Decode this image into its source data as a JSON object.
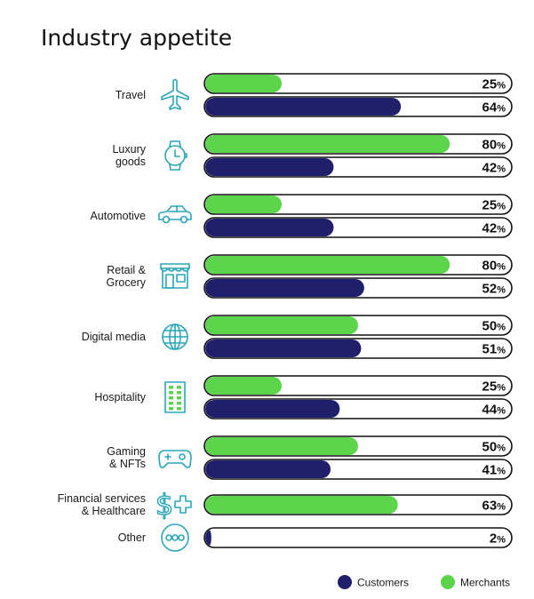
{
  "chart_data": {
    "type": "bar",
    "orientation": "horizontal",
    "title": "Industry appetite",
    "xlim": [
      0,
      100
    ],
    "unit": "%",
    "categories": [
      {
        "label": [
          "Travel"
        ],
        "icon": "airplane-icon",
        "customers": 64,
        "merchants": 25
      },
      {
        "label": [
          "Luxury",
          "goods"
        ],
        "icon": "watch-icon",
        "customers": 42,
        "merchants": 80
      },
      {
        "label": [
          "Automotive"
        ],
        "icon": "car-icon",
        "customers": 42,
        "merchants": 25
      },
      {
        "label": [
          "Retail &",
          "Grocery"
        ],
        "icon": "storefront-icon",
        "customers": 52,
        "merchants": 80
      },
      {
        "label": [
          "Digital media"
        ],
        "icon": "globe-icon",
        "customers": 51,
        "merchants": 50
      },
      {
        "label": [
          "Hospitality"
        ],
        "icon": "hotel-building-icon",
        "customers": 44,
        "merchants": 25
      },
      {
        "label": [
          "Gaming",
          "& NFTs"
        ],
        "icon": "game-controller-icon",
        "customers": 41,
        "merchants": 50
      },
      {
        "label": [
          "Financial services",
          "& Healthcare"
        ],
        "icon": "dollar-plus-icon",
        "customers": null,
        "merchants": 63
      },
      {
        "label": [
          "Other"
        ],
        "icon": "ellipsis-circle-icon",
        "customers": 2,
        "merchants": null
      }
    ],
    "series": [
      {
        "key": "customers",
        "name": "Customers",
        "color": "#1f1f6b"
      },
      {
        "key": "merchants",
        "name": "Merchants",
        "color": "#5cd44c"
      }
    ],
    "icon_color": "#2aa6b8",
    "legend_position": "bottom-right"
  }
}
